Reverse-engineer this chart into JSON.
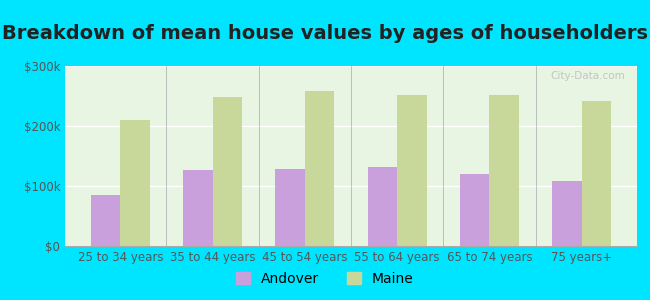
{
  "title": "Breakdown of mean house values by ages of householders",
  "categories": [
    "25 to 34 years",
    "35 to 44 years",
    "45 to 54 years",
    "55 to 64 years",
    "65 to 74 years",
    "75 years+"
  ],
  "andover_values": [
    85000,
    127000,
    128000,
    132000,
    120000,
    108000
  ],
  "maine_values": [
    210000,
    248000,
    258000,
    252000,
    252000,
    242000
  ],
  "andover_color": "#c9a0dc",
  "maine_color": "#c8d89a",
  "background_outer": "#00e5ff",
  "background_inner": "#e8f5e2",
  "ylim": [
    0,
    300000
  ],
  "yticks": [
    0,
    100000,
    200000,
    300000
  ],
  "ytick_labels": [
    "$0",
    "$100k",
    "$200k",
    "$300k"
  ],
  "legend_andover": "Andover",
  "legend_maine": "Maine",
  "title_fontsize": 14,
  "tick_fontsize": 8.5,
  "legend_fontsize": 10,
  "bar_width": 0.32
}
